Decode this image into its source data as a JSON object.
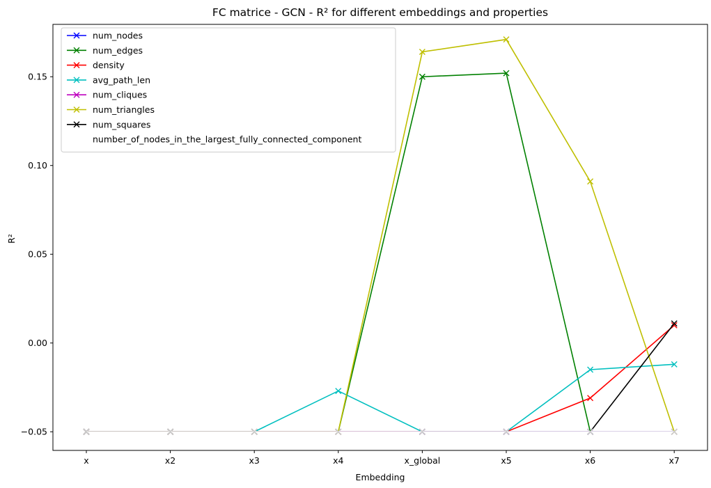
{
  "chart_data": {
    "type": "line",
    "title": "FC matrice - GCN - R² for different embeddings and properties",
    "xlabel": "Embedding",
    "ylabel": "R²",
    "categories": [
      "x",
      "x2",
      "x3",
      "x4",
      "x_global",
      "x5",
      "x6",
      "x7"
    ],
    "ylim": [
      -0.0605,
      0.1795
    ],
    "yticks": [
      -0.05,
      0.0,
      0.05,
      0.1,
      0.15
    ],
    "ytick_labels": [
      "−0.05",
      "0.00",
      "0.05",
      "0.10",
      "0.15"
    ],
    "grid": false,
    "legend_position": "top-left",
    "marker": "x",
    "series": [
      {
        "name": "num_nodes",
        "color": "#0000ff",
        "values": [
          -0.05,
          -0.05,
          -0.05,
          -0.05,
          -0.05,
          -0.05,
          -0.05,
          -0.05
        ]
      },
      {
        "name": "num_edges",
        "color": "#008000",
        "values": [
          -0.05,
          -0.05,
          -0.05,
          -0.05,
          0.15,
          0.152,
          -0.05,
          -0.05
        ]
      },
      {
        "name": "density",
        "color": "#ff0000",
        "values": [
          -0.05,
          -0.05,
          -0.05,
          -0.05,
          -0.05,
          -0.05,
          -0.031,
          0.01
        ]
      },
      {
        "name": "avg_path_len",
        "color": "#00bfbf",
        "values": [
          -0.05,
          -0.05,
          -0.05,
          -0.027,
          -0.05,
          -0.05,
          -0.015,
          -0.012
        ]
      },
      {
        "name": "num_cliques",
        "color": "#bf00bf",
        "values": [
          -0.05,
          -0.05,
          -0.05,
          -0.05,
          -0.05,
          -0.05,
          -0.05,
          -0.05
        ]
      },
      {
        "name": "num_triangles",
        "color": "#bfbf00",
        "values": [
          -0.05,
          -0.05,
          -0.05,
          -0.05,
          0.164,
          0.171,
          0.091,
          -0.05
        ]
      },
      {
        "name": "num_squares",
        "color": "#000000",
        "values": [
          -0.05,
          -0.05,
          -0.05,
          -0.05,
          -0.05,
          -0.05,
          -0.05,
          0.011
        ]
      },
      {
        "name": "number_of_nodes_in_the_largest_fully_connected_component",
        "color": "#ffffff",
        "values": [
          -0.05,
          -0.05,
          -0.05,
          -0.05,
          -0.05,
          -0.05,
          -0.05,
          -0.05
        ]
      }
    ]
  }
}
